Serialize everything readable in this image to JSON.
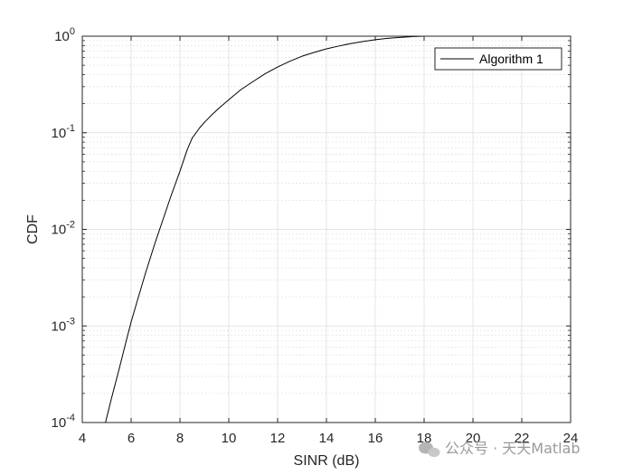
{
  "chart_data": {
    "type": "line",
    "title": "",
    "xlabel": "SINR (dB)",
    "ylabel": "CDF",
    "xlim": [
      4,
      24
    ],
    "ylim": [
      0.0001,
      1
    ],
    "yscale": "log",
    "grid": true,
    "minor_grid": true,
    "legend_position": "top-right",
    "xticks": [
      "4",
      "6",
      "8",
      "10",
      "12",
      "14",
      "16",
      "18",
      "20",
      "22",
      "24"
    ],
    "yticks": [
      {
        "base": "10",
        "exp": "-4"
      },
      {
        "base": "10",
        "exp": "-3"
      },
      {
        "base": "10",
        "exp": "-2"
      },
      {
        "base": "10",
        "exp": "-1"
      },
      {
        "base": "10",
        "exp": "0"
      }
    ],
    "series": [
      {
        "name": "Algorithm 1",
        "color": "#000000",
        "x": [
          4.95,
          5.2,
          5.5,
          5.8,
          6.0,
          6.3,
          6.6,
          7.0,
          7.3,
          7.6,
          8.0,
          8.3,
          8.5,
          8.8,
          9.0,
          9.3,
          9.6,
          10.0,
          10.5,
          11.0,
          11.5,
          12.0,
          12.5,
          13.0,
          13.5,
          14.0,
          14.5,
          15.0,
          15.5,
          16.0,
          16.5,
          17.0,
          17.5,
          18.0,
          18.2
        ],
        "y": [
          0.0001,
          0.00018,
          0.00035,
          0.0007,
          0.0011,
          0.002,
          0.0036,
          0.0075,
          0.0125,
          0.021,
          0.04,
          0.067,
          0.088,
          0.112,
          0.128,
          0.153,
          0.18,
          0.22,
          0.28,
          0.34,
          0.41,
          0.48,
          0.55,
          0.62,
          0.68,
          0.74,
          0.79,
          0.84,
          0.88,
          0.92,
          0.95,
          0.97,
          0.99,
          1.0,
          1.0
        ]
      }
    ]
  },
  "watermark": {
    "text": "公众号 · 天天Matlab",
    "icon": "wechat-icon"
  }
}
